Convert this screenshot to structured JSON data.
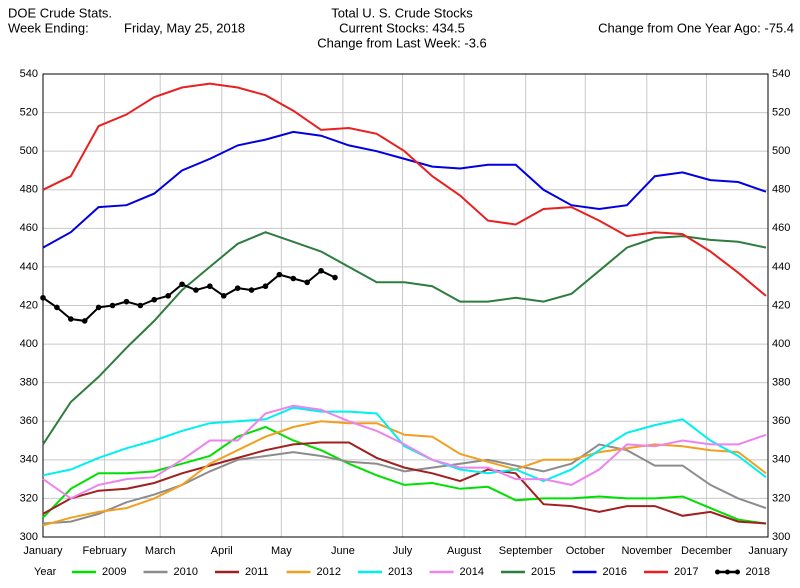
{
  "chart_data": {
    "type": "line",
    "title": "Total U. S. Crude Stocks",
    "subtitle": [
      "Current Stocks: 434.5",
      "Change from Last Week:  -3.6"
    ],
    "annotations": [
      "DOE Crude Stats.",
      "Week Ending:",
      "Friday, May 25, 2018",
      "Change from One Year Ago: -75.4"
    ],
    "legend_title": "Year",
    "legend": "bottom",
    "grid": true,
    "xlim": [
      0,
      365
    ],
    "xticks": [
      {
        "value": 0,
        "label": "January"
      },
      {
        "value": 31,
        "label": "February"
      },
      {
        "value": 59,
        "label": "March"
      },
      {
        "value": 90,
        "label": "April"
      },
      {
        "value": 120,
        "label": "May"
      },
      {
        "value": 151,
        "label": "June"
      },
      {
        "value": 181,
        "label": "July"
      },
      {
        "value": 212,
        "label": "August"
      },
      {
        "value": 243,
        "label": "September"
      },
      {
        "value": 273,
        "label": "October"
      },
      {
        "value": 304,
        "label": "November"
      },
      {
        "value": 334,
        "label": "December"
      },
      {
        "value": 365,
        "label": "January"
      }
    ],
    "ylim": [
      300,
      540
    ],
    "yticks": [
      300,
      320,
      340,
      360,
      380,
      400,
      420,
      440,
      460,
      480,
      500,
      520,
      540
    ],
    "x": [
      0,
      14,
      28,
      42,
      56,
      70,
      84,
      98,
      112,
      126,
      140,
      154,
      168,
      182,
      196,
      210,
      224,
      238,
      252,
      266,
      280,
      294,
      308,
      322,
      336,
      350,
      364
    ],
    "series": [
      {
        "name": "2009",
        "color": "#00e000",
        "values": [
          310,
          325,
          333,
          333,
          334,
          338,
          342,
          352,
          357,
          350,
          345,
          338,
          332,
          327,
          328,
          325,
          326,
          319,
          320,
          320,
          321,
          320,
          320,
          321,
          315,
          309,
          307
        ]
      },
      {
        "name": "2010",
        "color": "#8c8c8c",
        "values": [
          307,
          308,
          312,
          318,
          322,
          327,
          334,
          340,
          342,
          344,
          342,
          339,
          338,
          334,
          336,
          338,
          340,
          337,
          334,
          338,
          348,
          345,
          337,
          337,
          327,
          320,
          315
        ]
      },
      {
        "name": "2011",
        "color": "#a02020",
        "values": [
          312,
          320,
          324,
          325,
          328,
          333,
          337,
          341,
          345,
          348,
          349,
          349,
          341,
          336,
          333,
          329,
          335,
          333,
          317,
          316,
          313,
          316,
          316,
          311,
          313,
          308,
          307
        ]
      },
      {
        "name": "2012",
        "color": "#f0a020",
        "values": [
          306,
          310,
          313,
          315,
          320,
          327,
          338,
          345,
          352,
          357,
          360,
          359,
          359,
          353,
          352,
          343,
          339,
          335,
          340,
          340,
          344,
          346,
          348,
          347,
          345,
          344,
          333
        ]
      },
      {
        "name": "2013",
        "color": "#00f0f0",
        "values": [
          332,
          335,
          341,
          346,
          350,
          355,
          359,
          360,
          361,
          367,
          365,
          365,
          364,
          347,
          340,
          335,
          333,
          335,
          329,
          335,
          345,
          354,
          358,
          361,
          350,
          342,
          331
        ]
      },
      {
        "name": "2014",
        "color": "#ee82ee",
        "values": [
          330,
          320,
          327,
          330,
          331,
          340,
          350,
          350,
          364,
          368,
          366,
          360,
          355,
          348,
          340,
          336,
          336,
          330,
          330,
          327,
          335,
          348,
          347,
          350,
          348,
          348,
          353
        ]
      },
      {
        "name": "2015",
        "color": "#2e7d3e",
        "values": [
          348,
          370,
          383,
          398,
          412,
          428,
          440,
          452,
          458,
          453,
          448,
          440,
          432,
          432,
          430,
          422,
          422,
          424,
          422,
          426,
          438,
          450,
          455,
          456,
          454,
          453,
          450
        ]
      },
      {
        "name": "2016",
        "color": "#0000e0",
        "values": [
          450,
          458,
          471,
          472,
          478,
          490,
          496,
          503,
          506,
          510,
          508,
          503,
          500,
          496,
          492,
          491,
          493,
          493,
          480,
          472,
          470,
          472,
          487,
          489,
          485,
          484,
          479
        ]
      },
      {
        "name": "2017",
        "color": "#e82020",
        "values": [
          480,
          487,
          513,
          519,
          528,
          533,
          535,
          533,
          529,
          521,
          511,
          512,
          509,
          500,
          487,
          477,
          464,
          462,
          470,
          471,
          464,
          456,
          458,
          457,
          448,
          437,
          425
        ]
      },
      {
        "name": "2018",
        "color": "#000000",
        "marker": "circle",
        "x": [
          0,
          7,
          14,
          21,
          28,
          35,
          42,
          49,
          56,
          63,
          70,
          77,
          84,
          91,
          98,
          105,
          112,
          119,
          126,
          133,
          140,
          147
        ],
        "values": [
          424,
          419,
          413,
          412,
          419,
          420,
          422,
          420,
          423,
          425,
          431,
          428,
          430,
          425,
          429,
          428,
          430,
          436,
          434,
          432,
          438,
          434.5
        ]
      }
    ]
  }
}
